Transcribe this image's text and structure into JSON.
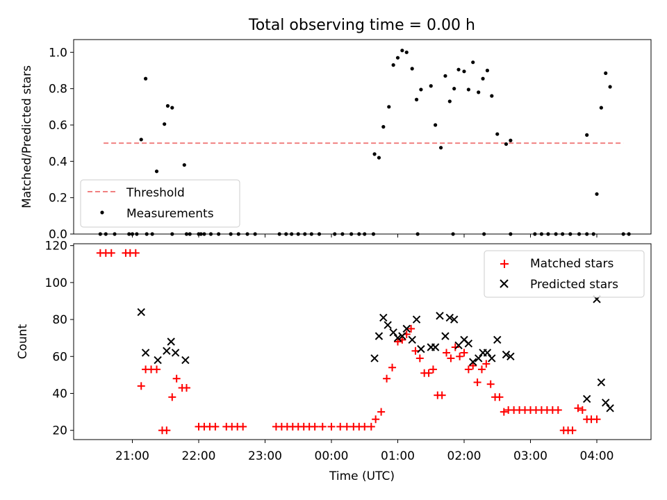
{
  "chart_data": [
    {
      "type": "scatter",
      "title": "Total observing time = 0.00 h",
      "xlabel": "",
      "ylabel": "Matched/Predicted stars",
      "ylim": [
        0.0,
        1.07
      ],
      "yticks": [
        "0.0",
        "0.2",
        "0.4",
        "0.6",
        "0.8",
        "1.0"
      ],
      "ytick_values": [
        0.0,
        0.2,
        0.4,
        0.6,
        0.8,
        1.0
      ],
      "legend_position": "lower-left",
      "threshold": {
        "name": "Threshold",
        "value": 0.5,
        "x_start": "20:34",
        "x_end": "04:24",
        "color": "#f08080"
      },
      "measurements": {
        "name": "Measurements",
        "color": "#000000",
        "points": [
          [
            "20:31",
            0
          ],
          [
            "20:36",
            0
          ],
          [
            "20:44",
            0
          ],
          [
            "20:57",
            0
          ],
          [
            "21:00",
            0
          ],
          [
            "21:04",
            0
          ],
          [
            "21:13",
            0
          ],
          [
            "21:18",
            0
          ],
          [
            "21:36",
            0
          ],
          [
            "21:49",
            0
          ],
          [
            "21:52",
            0
          ],
          [
            "22:00",
            0
          ],
          [
            "22:02",
            0
          ],
          [
            "22:05",
            0
          ],
          [
            "22:11",
            0
          ],
          [
            "22:18",
            0
          ],
          [
            "22:29",
            0
          ],
          [
            "22:36",
            0
          ],
          [
            "22:44",
            0
          ],
          [
            "22:51",
            0
          ],
          [
            "23:13",
            0
          ],
          [
            "23:19",
            0
          ],
          [
            "23:24",
            0
          ],
          [
            "23:30",
            0
          ],
          [
            "23:36",
            0
          ],
          [
            "23:42",
            0
          ],
          [
            "23:49",
            0
          ],
          [
            "00:03",
            0
          ],
          [
            "00:10",
            0
          ],
          [
            "00:18",
            0
          ],
          [
            "00:25",
            0
          ],
          [
            "00:30",
            0
          ],
          [
            "00:38",
            0
          ],
          [
            "01:18",
            0
          ],
          [
            "01:50",
            0
          ],
          [
            "02:18",
            0
          ],
          [
            "02:42",
            0
          ],
          [
            "03:04",
            0
          ],
          [
            "03:10",
            0
          ],
          [
            "03:16",
            0
          ],
          [
            "03:23",
            0
          ],
          [
            "03:29",
            0
          ],
          [
            "03:36",
            0
          ],
          [
            "03:44",
            0
          ],
          [
            "03:51",
            0
          ],
          [
            "03:57",
            0
          ],
          [
            "04:24",
            0
          ],
          [
            "04:29",
            0
          ],
          [
            "21:08",
            0.52
          ],
          [
            "21:12",
            0.855
          ],
          [
            "21:22",
            0.345
          ],
          [
            "21:29",
            0.605
          ],
          [
            "21:32",
            0.705
          ],
          [
            "21:36",
            0.695
          ],
          [
            "21:47",
            0.38
          ],
          [
            "00:39",
            0.44
          ],
          [
            "00:43",
            0.42
          ],
          [
            "00:47",
            0.59
          ],
          [
            "00:52",
            0.7
          ],
          [
            "00:56",
            0.93
          ],
          [
            "01:00",
            0.97
          ],
          [
            "01:04",
            1.01
          ],
          [
            "01:08",
            1.0
          ],
          [
            "01:13",
            0.91
          ],
          [
            "01:17",
            0.74
          ],
          [
            "01:21",
            0.795
          ],
          [
            "01:30",
            0.815
          ],
          [
            "01:34",
            0.6
          ],
          [
            "01:39",
            0.475
          ],
          [
            "01:43",
            0.87
          ],
          [
            "01:47",
            0.73
          ],
          [
            "01:51",
            0.8
          ],
          [
            "01:55",
            0.905
          ],
          [
            "02:00",
            0.895
          ],
          [
            "02:04",
            0.795
          ],
          [
            "02:08",
            0.945
          ],
          [
            "02:13",
            0.78
          ],
          [
            "02:17",
            0.855
          ],
          [
            "02:21",
            0.9
          ],
          [
            "02:25",
            0.76
          ],
          [
            "02:30",
            0.55
          ],
          [
            "02:38",
            0.495
          ],
          [
            "02:42",
            0.515
          ],
          [
            "03:51",
            0.545
          ],
          [
            "04:00",
            0.22
          ],
          [
            "04:04",
            0.695
          ],
          [
            "04:08",
            0.885
          ],
          [
            "04:12",
            0.81
          ]
        ]
      }
    },
    {
      "type": "scatter",
      "title": "",
      "xlabel": "Time (UTC)",
      "ylabel": "Count",
      "ylim": [
        15,
        121
      ],
      "yticks": [
        "20",
        "40",
        "60",
        "80",
        "100",
        "120"
      ],
      "ytick_values": [
        20,
        40,
        60,
        80,
        100,
        120
      ],
      "xticks": [
        "21:00",
        "22:00",
        "23:00",
        "00:00",
        "01:00",
        "02:00",
        "03:00",
        "04:00"
      ],
      "legend_position": "upper-right",
      "series": [
        {
          "name": "Matched stars",
          "marker": "plus",
          "color": "#ff0000",
          "points": [
            [
              "20:31",
              116
            ],
            [
              "20:36",
              116
            ],
            [
              "20:41",
              116
            ],
            [
              "20:54",
              116
            ],
            [
              "20:58",
              116
            ],
            [
              "21:03",
              116
            ],
            [
              "21:08",
              44
            ],
            [
              "21:12",
              53
            ],
            [
              "21:17",
              53
            ],
            [
              "21:22",
              53
            ],
            [
              "21:27",
              20
            ],
            [
              "21:31",
              20
            ],
            [
              "21:36",
              38
            ],
            [
              "21:40",
              48
            ],
            [
              "21:45",
              43
            ],
            [
              "21:49",
              43
            ],
            [
              "22:00",
              22
            ],
            [
              "22:05",
              22
            ],
            [
              "22:10",
              22
            ],
            [
              "22:15",
              22
            ],
            [
              "22:25",
              22
            ],
            [
              "22:30",
              22
            ],
            [
              "22:35",
              22
            ],
            [
              "22:40",
              22
            ],
            [
              "23:10",
              22
            ],
            [
              "23:15",
              22
            ],
            [
              "23:20",
              22
            ],
            [
              "23:25",
              22
            ],
            [
              "23:30",
              22
            ],
            [
              "23:35",
              22
            ],
            [
              "23:40",
              22
            ],
            [
              "23:45",
              22
            ],
            [
              "23:52",
              22
            ],
            [
              "00:00",
              22
            ],
            [
              "00:08",
              22
            ],
            [
              "00:14",
              22
            ],
            [
              "00:20",
              22
            ],
            [
              "00:25",
              22
            ],
            [
              "00:30",
              22
            ],
            [
              "00:36",
              22
            ],
            [
              "00:40",
              26
            ],
            [
              "00:45",
              30
            ],
            [
              "00:50",
              48
            ],
            [
              "00:55",
              54
            ],
            [
              "01:00",
              68
            ],
            [
              "01:04",
              69
            ],
            [
              "01:08",
              72
            ],
            [
              "01:12",
              75
            ],
            [
              "01:16",
              63
            ],
            [
              "01:20",
              59
            ],
            [
              "01:24",
              51
            ],
            [
              "01:28",
              51
            ],
            [
              "01:32",
              53
            ],
            [
              "01:36",
              39
            ],
            [
              "01:40",
              39
            ],
            [
              "01:44",
              62
            ],
            [
              "01:48",
              59
            ],
            [
              "01:52",
              65
            ],
            [
              "01:56",
              60
            ],
            [
              "02:00",
              62
            ],
            [
              "02:04",
              53
            ],
            [
              "02:08",
              55
            ],
            [
              "02:12",
              46
            ],
            [
              "02:16",
              53
            ],
            [
              "02:20",
              56
            ],
            [
              "02:24",
              45
            ],
            [
              "02:28",
              38
            ],
            [
              "02:32",
              38
            ],
            [
              "02:36",
              30
            ],
            [
              "02:40",
              31
            ],
            [
              "02:45",
              31
            ],
            [
              "02:50",
              31
            ],
            [
              "02:55",
              31
            ],
            [
              "03:00",
              31
            ],
            [
              "03:05",
              31
            ],
            [
              "03:10",
              31
            ],
            [
              "03:15",
              31
            ],
            [
              "03:20",
              31
            ],
            [
              "03:25",
              31
            ],
            [
              "03:30",
              20
            ],
            [
              "03:34",
              20
            ],
            [
              "03:38",
              20
            ],
            [
              "03:43",
              32
            ],
            [
              "03:47",
              31
            ],
            [
              "03:51",
              26
            ],
            [
              "03:55",
              26
            ],
            [
              "04:00",
              26
            ]
          ]
        },
        {
          "name": "Predicted stars",
          "marker": "x",
          "color": "#000000",
          "points": [
            [
              "21:08",
              84
            ],
            [
              "21:12",
              62
            ],
            [
              "21:23",
              58
            ],
            [
              "21:31",
              63
            ],
            [
              "21:35",
              68
            ],
            [
              "21:39",
              62
            ],
            [
              "21:48",
              58
            ],
            [
              "00:39",
              59
            ],
            [
              "00:43",
              71
            ],
            [
              "00:47",
              81
            ],
            [
              "00:51",
              77
            ],
            [
              "00:56",
              73
            ],
            [
              "01:00",
              70
            ],
            [
              "01:04",
              71
            ],
            [
              "01:08",
              75
            ],
            [
              "01:13",
              69
            ],
            [
              "01:17",
              80
            ],
            [
              "01:21",
              64
            ],
            [
              "01:30",
              65
            ],
            [
              "01:34",
              65
            ],
            [
              "01:38",
              82
            ],
            [
              "01:43",
              71
            ],
            [
              "01:47",
              81
            ],
            [
              "01:51",
              80
            ],
            [
              "01:55",
              66
            ],
            [
              "02:00",
              69
            ],
            [
              "02:04",
              67
            ],
            [
              "02:08",
              57
            ],
            [
              "02:13",
              59
            ],
            [
              "02:17",
              62
            ],
            [
              "02:21",
              62
            ],
            [
              "02:25",
              59
            ],
            [
              "02:30",
              69
            ],
            [
              "02:38",
              61
            ],
            [
              "02:42",
              60
            ],
            [
              "03:51",
              37
            ],
            [
              "04:00",
              91
            ],
            [
              "04:04",
              46
            ],
            [
              "04:08",
              35
            ],
            [
              "04:12",
              32
            ]
          ]
        }
      ]
    }
  ]
}
